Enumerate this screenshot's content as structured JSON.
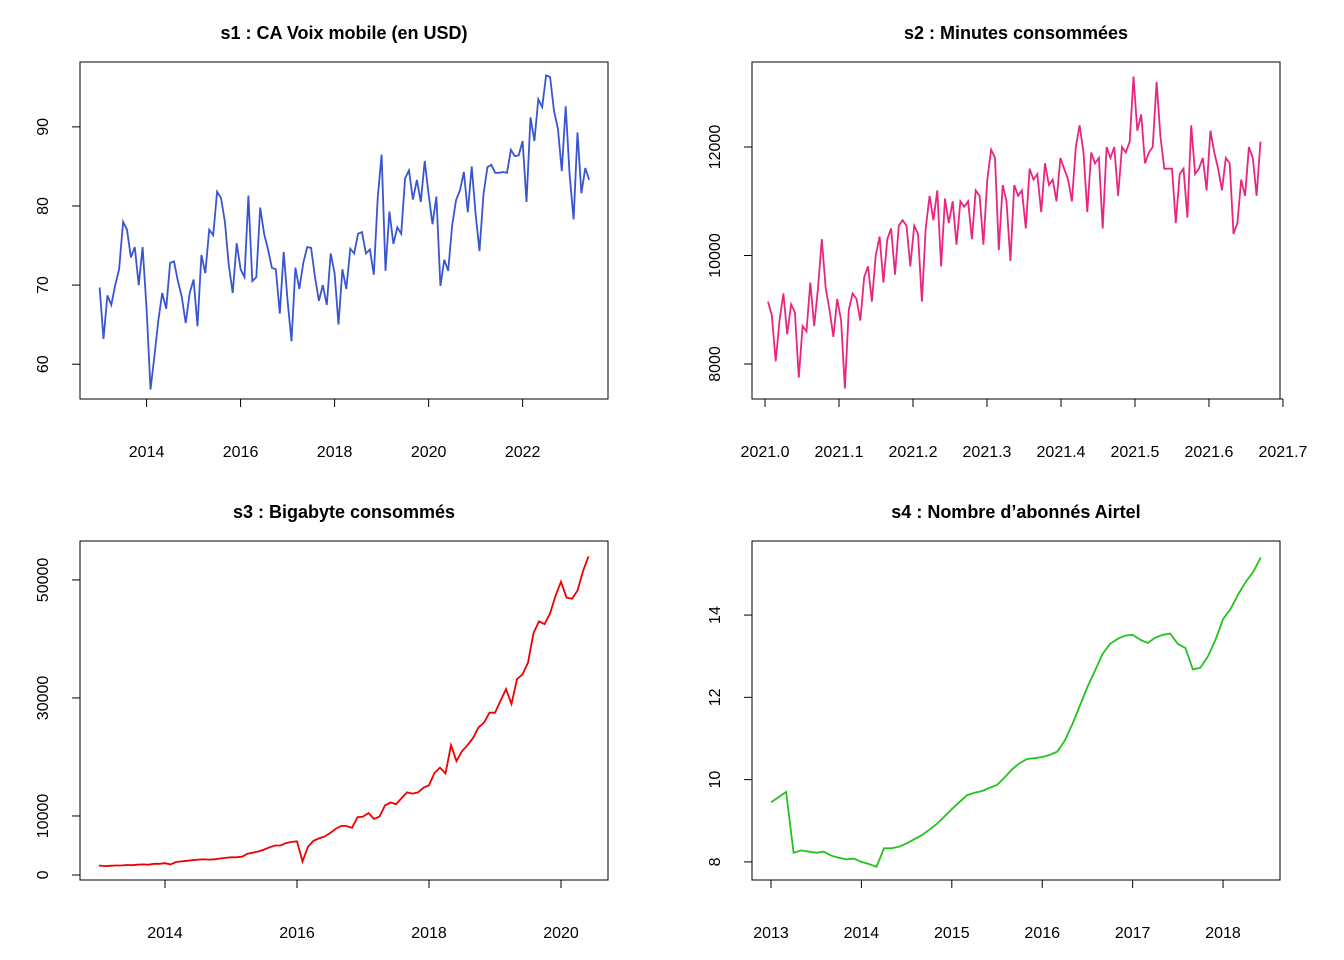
{
  "chart_data": [
    {
      "type": "line",
      "title": "s1 : CA Voix mobile (en USD)",
      "color": "#3a55d0",
      "x_start": 2013,
      "x_step": 0.083333,
      "values": [
        69.7,
        63.2,
        68.7,
        67.5,
        70,
        72,
        78,
        77,
        73.5,
        74.8,
        70,
        74.8,
        67,
        56.8,
        61,
        65.5,
        69,
        67,
        72.8,
        73,
        70.5,
        68.5,
        65.2,
        69,
        70.7,
        64.8,
        73.8,
        71.5,
        77,
        76.3,
        81.8,
        81,
        78,
        72.5,
        69,
        75.3,
        72,
        71,
        81.3,
        70.5,
        71,
        79.8,
        76.5,
        74.5,
        72.2,
        72,
        66.4,
        74.2,
        68,
        62.9,
        72.2,
        69.5,
        72.8,
        74.8,
        74.7,
        71,
        68,
        70,
        67.5,
        74,
        71.5,
        65,
        72,
        69.5,
        74.6,
        74,
        76.5,
        76.7,
        74,
        74.5,
        71.3,
        81,
        86.5,
        71.8,
        79.3,
        75.2,
        77.3,
        76.5,
        83.5,
        84.5,
        80.8,
        83.3,
        80.5,
        85.7,
        81.5,
        77.7,
        81.2,
        69.9,
        73.2,
        71.8,
        77.5,
        80.7,
        82,
        84.3,
        79.2,
        85,
        79,
        74.3,
        81.5,
        84.9,
        85.2,
        84.2,
        84.2,
        84.3,
        84.2,
        87.1,
        86.3,
        86.4,
        88.2,
        80.5,
        91.2,
        88.2,
        93.5,
        92.5,
        96.5,
        96.3,
        92,
        89.8,
        84.4,
        92.6,
        84,
        78.3,
        89.3,
        81.6,
        84.8,
        83.3
      ],
      "xlim": [
        2012.584,
        2023.816
      ],
      "xticks": [
        2014,
        2016,
        2018,
        2020,
        2022
      ],
      "ylim": [
        55.6,
        98.2
      ],
      "yticks": [
        60,
        70,
        80,
        90
      ]
    },
    {
      "type": "line",
      "title": "s2 : Minutes consommées",
      "color": "#e8267f",
      "x_start": 2021.004,
      "x_step": 0.0052,
      "values": [
        9150,
        8900,
        8050,
        8800,
        9300,
        8550,
        9100,
        8950,
        7750,
        8700,
        8600,
        9500,
        8700,
        9400,
        10300,
        9400,
        9000,
        8500,
        9200,
        8800,
        7550,
        9000,
        9300,
        9200,
        8800,
        9600,
        9800,
        9150,
        10000,
        10350,
        9500,
        10300,
        10500,
        9650,
        10550,
        10650,
        10550,
        9800,
        10550,
        10400,
        9150,
        10500,
        11100,
        10650,
        11200,
        9800,
        11050,
        10600,
        11000,
        10200,
        11000,
        10900,
        11000,
        10300,
        11200,
        11100,
        10200,
        11400,
        11950,
        11800,
        10100,
        11300,
        11000,
        9900,
        11300,
        11100,
        11200,
        10500,
        11600,
        11400,
        11500,
        10800,
        11700,
        11300,
        11400,
        11000,
        11800,
        11600,
        11400,
        11000,
        12000,
        12400,
        11900,
        10800,
        11900,
        11700,
        11800,
        10500,
        12000,
        11800,
        12000,
        11100,
        12000,
        11900,
        12100,
        13300,
        12300,
        12600,
        11700,
        11900,
        12000,
        13200,
        12200,
        11600,
        11600,
        11600,
        10600,
        11500,
        11600,
        10700,
        12400,
        11500,
        11600,
        11800,
        11200,
        12300,
        11900,
        11600,
        11200,
        11800,
        11700,
        10400,
        10600,
        11400,
        11100,
        12000,
        11800,
        11100,
        12100
      ],
      "xlim": [
        2020.9824,
        2021.696
      ],
      "xticks": [
        {
          "value": 2021.0,
          "label": "2021.0"
        },
        2021.1,
        2021.2,
        2021.3,
        2021.4,
        2021.5,
        2021.6,
        2021.7
      ],
      "ylim": [
        7355,
        13567
      ],
      "yticks": [
        8000,
        10000,
        12000
      ]
    },
    {
      "type": "line",
      "title": "s3 : Bigabyte consommés",
      "color": "#ee0000",
      "x_start": 2013,
      "x_step": 0.083333,
      "values": [
        1600,
        1500,
        1550,
        1600,
        1600,
        1700,
        1650,
        1750,
        1800,
        1750,
        1900,
        1900,
        2000,
        1800,
        2200,
        2300,
        2400,
        2500,
        2600,
        2650,
        2600,
        2650,
        2800,
        2900,
        3000,
        3000,
        3100,
        3600,
        3800,
        4000,
        4300,
        4700,
        5000,
        5000,
        5400,
        5600,
        5700,
        2300,
        4800,
        5800,
        6200,
        6500,
        7100,
        7800,
        8300,
        8300,
        8000,
        9800,
        9900,
        10500,
        9500,
        9900,
        11800,
        12300,
        12000,
        13000,
        14000,
        13800,
        14000,
        14800,
        15200,
        17300,
        18200,
        17200,
        22000,
        19300,
        21000,
        22000,
        23200,
        25000,
        25800,
        27500,
        27500,
        29500,
        31500,
        29000,
        33200,
        34000,
        36000,
        41000,
        43000,
        42500,
        44300,
        47300,
        49700,
        47000,
        46800,
        48200,
        51500,
        54000
      ],
      "xlim": [
        2012.712,
        2020.712
      ],
      "xticks": [
        2014,
        2016,
        2018,
        2020
      ],
      "ylim": [
        -850,
        56600
      ],
      "yticks": [
        0,
        10000,
        30000,
        50000
      ]
    },
    {
      "type": "line",
      "title": "s4 : Nombre d’abonnés Airtel",
      "color": "#22c41c",
      "x_start": 2013,
      "x_step": 0.083333,
      "values": [
        9.45,
        9.57,
        9.7,
        8.22,
        8.28,
        8.25,
        8.22,
        8.25,
        8.15,
        8.1,
        8.06,
        8.08,
        8.0,
        7.95,
        7.88,
        8.33,
        8.33,
        8.37,
        8.45,
        8.55,
        8.65,
        8.78,
        8.92,
        9.1,
        9.28,
        9.45,
        9.62,
        9.68,
        9.72,
        9.8,
        9.87,
        10.05,
        10.25,
        10.4,
        10.5,
        10.52,
        10.55,
        10.6,
        10.68,
        10.95,
        11.35,
        11.8,
        12.25,
        12.65,
        13.05,
        13.3,
        13.42,
        13.5,
        13.52,
        13.4,
        13.32,
        13.45,
        13.52,
        13.55,
        13.3,
        13.2,
        12.68,
        12.72,
        13.0,
        13.4,
        13.9,
        14.15,
        14.5,
        14.8,
        15.05,
        15.4
      ],
      "xlim": [
        2012.79,
        2018.63
      ],
      "xticks": [
        2013,
        2014,
        2015,
        2016,
        2017,
        2018
      ],
      "ylim": [
        7.56,
        15.8
      ],
      "yticks": [
        8,
        10,
        12,
        14
      ]
    }
  ]
}
